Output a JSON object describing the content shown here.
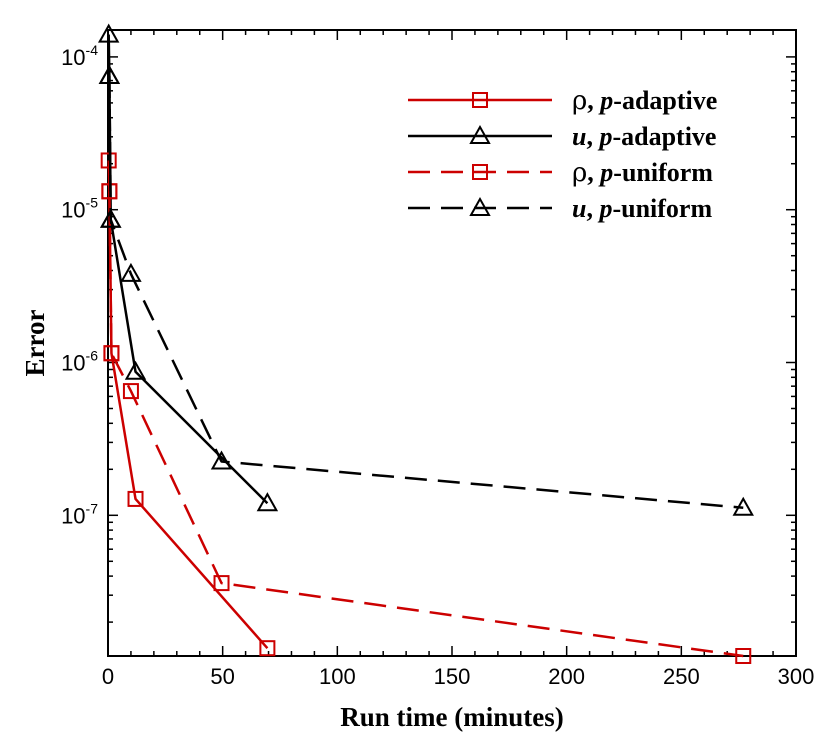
{
  "chart_data": {
    "type": "line",
    "title": "",
    "xlabel": "Run time (minutes)",
    "ylabel": "Error",
    "xlim": [
      0,
      300
    ],
    "ylim": [
      1.2e-08,
      0.00015
    ],
    "yscale": "log",
    "grid": false,
    "legend_position": "top-right",
    "x_ticks": [
      {
        "value": 0,
        "label": "0"
      },
      {
        "value": 50,
        "label": "50"
      },
      {
        "value": 100,
        "label": "100"
      },
      {
        "value": 150,
        "label": "150"
      },
      {
        "value": 200,
        "label": "200"
      },
      {
        "value": 250,
        "label": "250"
      },
      {
        "value": 300,
        "label": "300"
      }
    ],
    "y_ticks": [
      {
        "value": 0.0001,
        "base": "10",
        "exp": "-4"
      },
      {
        "value": 1e-05,
        "base": "10",
        "exp": "-5"
      },
      {
        "value": 1e-06,
        "base": "10",
        "exp": "-6"
      },
      {
        "value": 1e-07,
        "base": "10",
        "exp": "-7"
      }
    ],
    "series": [
      {
        "name": "ρ, p-adaptive",
        "legend": {
          "symbol": "ρ",
          "sep": ", ",
          "var": "p",
          "suffix": "-adaptive"
        },
        "color": "#cc0000",
        "dash": "solid",
        "marker": "square",
        "x": [
          0.3,
          0.6,
          1.5,
          12,
          69.5
        ],
        "y": [
          2.1e-05,
          1.32e-05,
          1.15e-06,
          1.28e-07,
          1.35e-08
        ]
      },
      {
        "name": "u, p-adaptive",
        "legend": {
          "symbol": "",
          "sep": ", ",
          "var": "u",
          "suffix": "-adaptive",
          "italic_first": true
        },
        "color": "#000000",
        "dash": "solid",
        "marker": "triangle",
        "x": [
          0.3,
          0.6,
          1.2,
          12,
          69.5
        ],
        "y": [
          0.00014,
          7.5e-05,
          8.6e-06,
          8.7e-07,
          1.2e-07
        ]
      },
      {
        "name": "ρ, p-uniform",
        "legend": {
          "symbol": "ρ",
          "sep": ", ",
          "var": "p",
          "suffix": "-uniform"
        },
        "color": "#cc0000",
        "dash": "dashed",
        "marker": "square",
        "x": [
          0.6,
          1.5,
          10,
          49.5,
          277
        ],
        "y": [
          1.32e-05,
          1.15e-06,
          6.5e-07,
          3.6e-08,
          1.2e-08
        ]
      },
      {
        "name": "u, p-uniform",
        "legend": {
          "symbol": "",
          "sep": ", ",
          "var": "u",
          "suffix": "-uniform",
          "italic_first": true
        },
        "color": "#000000",
        "dash": "dashed",
        "marker": "triangle",
        "x": [
          0.6,
          1.2,
          10,
          49.5,
          277
        ],
        "y": [
          7.5e-05,
          8.6e-06,
          3.8e-06,
          2.25e-07,
          1.12e-07
        ]
      }
    ]
  }
}
